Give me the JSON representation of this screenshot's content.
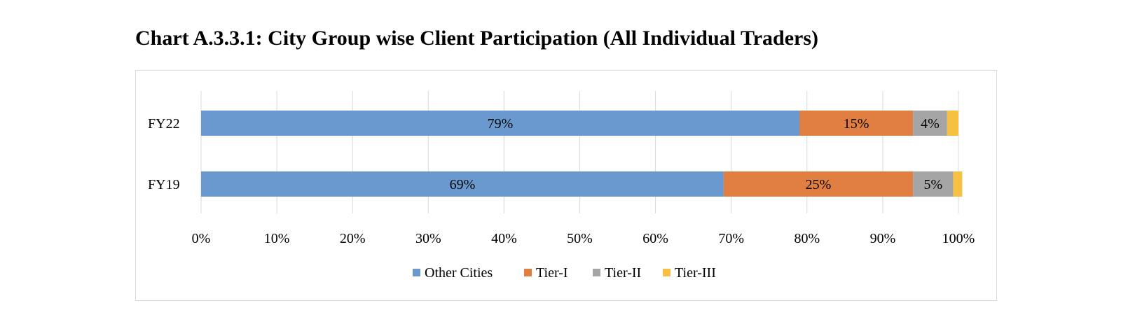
{
  "title": "Chart A.3.3.1: City Group wise Client Participation (All Individual Traders)",
  "chart_data": {
    "type": "bar",
    "orientation": "horizontal",
    "stacked": true,
    "percent_stacked": true,
    "title": "Chart A.3.3.1: City Group wise Client Participation (All Individual Traders)",
    "categories": [
      "FY22",
      "FY19"
    ],
    "series": [
      {
        "name": "Other Cities",
        "values": [
          79,
          69
        ],
        "labels": [
          "79%",
          "69%"
        ],
        "color": "#6a99d0"
      },
      {
        "name": "Tier-I",
        "values": [
          15,
          25
        ],
        "labels": [
          "15%",
          "25%"
        ],
        "color": "#e07f41"
      },
      {
        "name": "Tier-II",
        "values": [
          4.5,
          5.3
        ],
        "labels": [
          "4%",
          "5%"
        ],
        "color": "#a5a5a5"
      },
      {
        "name": "Tier-III",
        "values": [
          1.5,
          1.2
        ],
        "labels": [
          "",
          ""
        ],
        "color": "#f6c143"
      }
    ],
    "xlim": [
      0,
      100
    ],
    "x_ticks": [
      "0%",
      "10%",
      "20%",
      "30%",
      "40%",
      "50%",
      "60%",
      "70%",
      "80%",
      "90%",
      "100%"
    ],
    "grid": true,
    "legend_position": "bottom"
  }
}
